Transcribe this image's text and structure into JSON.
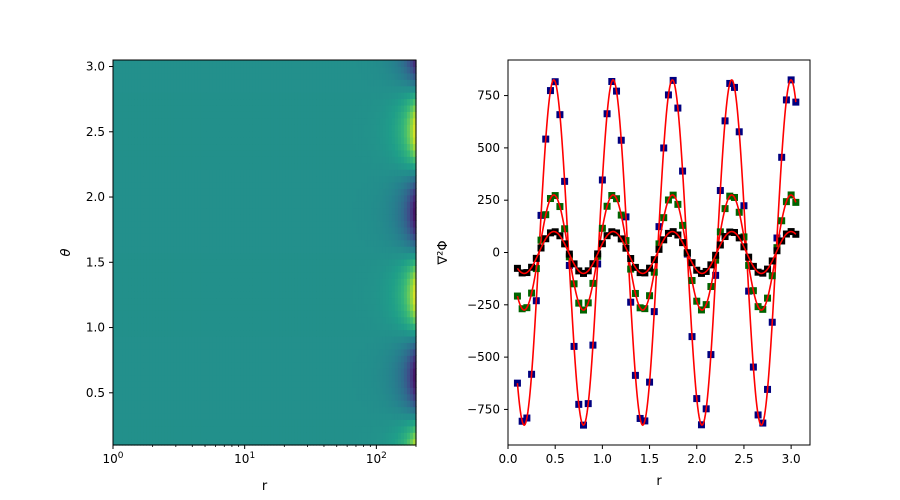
{
  "chart_data": [
    {
      "type": "heatmap",
      "xlabel": "r",
      "ylabel": "θ",
      "xscale": "log",
      "xlim": [
        1,
        200
      ],
      "ylim": [
        0.1,
        3.05
      ],
      "xticks": [
        {
          "value": 1,
          "base": "10",
          "exp": "0"
        },
        {
          "value": 10,
          "base": "10",
          "exp": "1"
        },
        {
          "value": 100,
          "base": "10",
          "exp": "2"
        }
      ],
      "yticks": [
        {
          "value": 0.5,
          "label": "0.5"
        },
        {
          "value": 1.0,
          "label": "1.0"
        },
        {
          "value": 1.5,
          "label": "1.5"
        },
        {
          "value": 2.0,
          "label": "2.0"
        },
        {
          "value": 2.5,
          "label": "2.5"
        },
        {
          "value": 3.0,
          "label": "3.0"
        }
      ],
      "colormap": "viridis",
      "field": {
        "angular_mode": 5,
        "radial_power": 5,
        "grid_x": 100,
        "grid_y": 60
      },
      "grid": false
    },
    {
      "type": "line",
      "xlabel": "r",
      "ylabel": "∇²Φ",
      "xlim": [
        0.0,
        3.2
      ],
      "ylim": [
        -920,
        920
      ],
      "xticks": [
        {
          "value": 0.0,
          "label": "0.0"
        },
        {
          "value": 0.5,
          "label": "0.5"
        },
        {
          "value": 1.0,
          "label": "1.0"
        },
        {
          "value": 1.5,
          "label": "1.5"
        },
        {
          "value": 2.0,
          "label": "2.0"
        },
        {
          "value": 2.5,
          "label": "2.5"
        },
        {
          "value": 3.0,
          "label": "3.0"
        }
      ],
      "yticks": [
        {
          "value": -750,
          "label": "−750"
        },
        {
          "value": -500,
          "label": "−500"
        },
        {
          "value": -250,
          "label": "−250"
        },
        {
          "value": 0,
          "label": "0"
        },
        {
          "value": 250,
          "label": "250"
        },
        {
          "value": 500,
          "label": "500"
        },
        {
          "value": 750,
          "label": "750"
        }
      ],
      "x_range": [
        0.1,
        3.05
      ],
      "n_samples": 60,
      "frequency": 10,
      "phase": 3.0,
      "series": [
        {
          "amplitude": 825,
          "marker_color": "#000080"
        },
        {
          "amplitude": 275,
          "marker_color": "#006400"
        },
        {
          "amplitude": 100,
          "marker_color": "#000000"
        }
      ],
      "fit_line_color": "#ff0000",
      "grid": false,
      "legend": "none"
    }
  ]
}
